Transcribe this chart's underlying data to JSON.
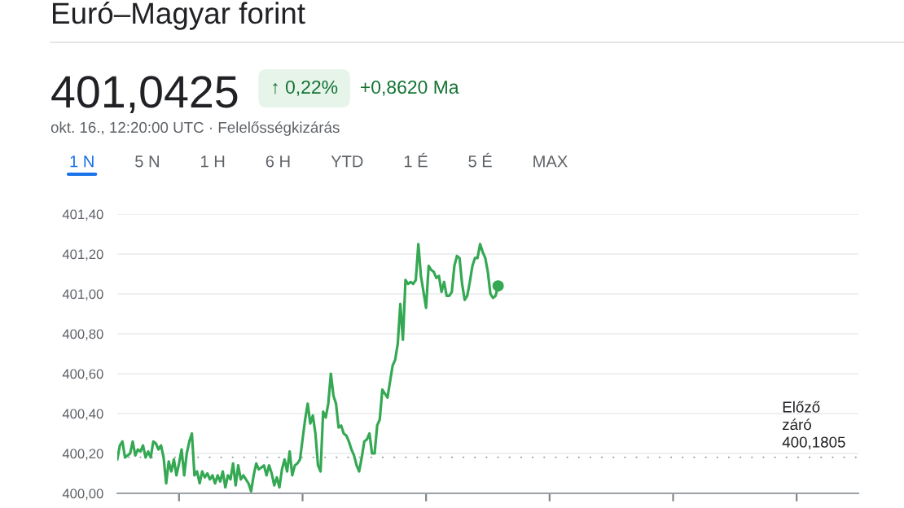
{
  "chart_data": {
    "type": "line",
    "title": "Euró–Magyar forint",
    "subtitle": "okt. 16., 12:20:00 UTC · Felelősségkizárás",
    "annotations": [
      "401,0425",
      "↑ 0,22%",
      "+0,8620 Ma",
      "1 N",
      "5 N",
      "1 H",
      "6 H",
      "YTD",
      "1 É",
      "5 É",
      "MAX"
    ],
    "categories": [
      null,
      null,
      null,
      null,
      null,
      null,
      null,
      null,
      null,
      null,
      null,
      null,
      null,
      null,
      null,
      null,
      null,
      null,
      null,
      null,
      null,
      null,
      null,
      null,
      null,
      null,
      null,
      null,
      null,
      null,
      null,
      null,
      null,
      null,
      null,
      null,
      null,
      null,
      null,
      null,
      null,
      null,
      null,
      null,
      null,
      null,
      null,
      null,
      null,
      null,
      null,
      null,
      null,
      null,
      null,
      null,
      null,
      null,
      null,
      null,
      null,
      null,
      null,
      null,
      null,
      null,
      null,
      null,
      null,
      null,
      null,
      null,
      null,
      null,
      null,
      null,
      null,
      null,
      null,
      null,
      null,
      null,
      null,
      null,
      null,
      null,
      null,
      null,
      null,
      null,
      null,
      null,
      null,
      null,
      null,
      null,
      null,
      null,
      null,
      null,
      null,
      null,
      null,
      null,
      null,
      null,
      null,
      null,
      null,
      null,
      null,
      null,
      null,
      null,
      null,
      null,
      null,
      null,
      null,
      null,
      null,
      null,
      null,
      null,
      null,
      null,
      null,
      null,
      null,
      null,
      null,
      null,
      null,
      null,
      null,
      null,
      null,
      null,
      null,
      null,
      null,
      null,
      null,
      null,
      null,
      null,
      null,
      null,
      null,
      null,
      null,
      null,
      null,
      null,
      null,
      null,
      null,
      null,
      null,
      null,
      null,
      null,
      null,
      null,
      null,
      null,
      null,
      null,
      null,
      null,
      null,
      null,
      null,
      null,
      null,
      null,
      null,
      null,
      null,
      null,
      null,
      null,
      null,
      null,
      null,
      null,
      null,
      null,
      null,
      null,
      null,
      null,
      null,
      null,
      null,
      null,
      null,
      null,
      null,
      null,
      null,
      null,
      null,
      null,
      null,
      null,
      null,
      null,
      null,
      null,
      null,
      null,
      null,
      null,
      null,
      null,
      null,
      null,
      null,
      null,
      null,
      null,
      null,
      null,
      null,
      null,
      null,
      null,
      null,
      null,
      null,
      null,
      null,
      null,
      null,
      null,
      null,
      null,
      null,
      null,
      null,
      null,
      null,
      null,
      null,
      null,
      null,
      null,
      null,
      null,
      null,
      null,
      null,
      null,
      null,
      null,
      null,
      null,
      null,
      null,
      null,
      null,
      null,
      null,
      null,
      null,
      null,
      null,
      null,
      null,
      null,
      null,
      null,
      null,
      null,
      null,
      null,
      null,
      null,
      null,
      null,
      null,
      null,
      null,
      null,
      null,
      null,
      null,
      null
    ],
    "series": [
      {
        "color": "#34a853",
        "values": [
          400.17,
          400.24,
          400.26,
          400.18,
          400.19,
          400.2,
          400.26,
          400.19,
          400.22,
          400.21,
          400.24,
          400.18,
          400.21,
          400.18,
          400.26,
          400.25,
          400.22,
          400.24,
          400.18,
          400.05,
          400.16,
          400.11,
          400.17,
          400.09,
          400.15,
          400.22,
          400.09,
          400.2,
          400.26,
          400.3,
          400.09,
          400.11,
          400.05,
          400.11,
          400.08,
          400.1,
          400.07,
          400.09,
          400.05,
          400.09,
          400.06,
          400.11,
          400.03,
          400.09,
          400.07,
          400.15,
          400.04,
          400.14,
          400.07,
          400.09,
          400.07,
          400.05,
          400.01,
          400.09,
          400.15,
          400.12,
          400.13,
          400.14,
          400.09,
          400.14,
          400.1,
          400.04,
          400.08,
          400.03,
          400.12,
          400.17,
          400.11,
          400.21,
          400.09,
          400.14,
          400.15,
          400.17,
          400.27,
          400.37,
          400.45,
          400.35,
          400.39,
          400.3,
          400.14,
          400.11,
          400.41,
          400.38,
          400.45,
          400.6,
          400.49,
          400.45,
          400.33,
          400.34,
          400.3,
          400.29,
          400.26,
          400.22,
          400.19,
          400.14,
          400.11,
          400.18,
          400.26,
          400.27,
          400.3,
          400.2,
          400.2,
          400.34,
          400.37,
          400.52,
          400.5,
          400.48,
          400.56,
          400.64,
          400.67,
          400.75,
          400.95,
          400.77,
          401.07,
          401.05,
          401.06,
          401.05,
          401.07,
          401.25,
          401.09,
          401.01,
          400.93,
          401.14,
          401.12,
          401.11,
          401.08,
          401.09,
          401.01,
          401.06,
          400.99,
          400.99,
          401.01,
          401.14,
          401.19,
          401.18,
          401.05,
          400.97,
          400.99,
          401.06,
          401.14,
          401.18,
          401.18,
          401.25,
          401.21,
          401.18,
          401.11,
          401.0,
          400.98,
          400.99,
          401.04,
          null,
          null,
          null,
          null,
          null,
          null,
          null,
          null,
          null,
          null,
          null,
          null,
          null,
          null,
          null,
          null,
          null,
          null,
          null,
          null,
          null,
          null,
          null,
          null,
          null,
          null,
          null,
          null,
          null,
          null,
          null,
          null,
          null,
          null,
          null,
          null,
          null,
          null,
          null,
          null,
          null,
          null,
          null,
          null,
          null,
          null,
          null,
          null,
          null,
          null,
          null,
          null,
          null,
          null,
          null,
          null,
          null,
          null,
          null,
          null,
          null,
          null,
          null,
          null,
          null,
          null,
          null,
          null,
          null,
          null,
          null,
          null,
          null,
          null,
          null,
          null,
          null,
          null,
          null,
          null,
          null,
          null,
          null,
          null,
          null,
          null,
          null,
          null,
          null,
          null,
          null,
          null,
          null,
          null,
          null,
          null,
          null,
          null,
          null,
          null,
          null,
          null,
          null,
          null,
          null,
          null,
          null,
          null,
          null,
          null,
          null,
          null,
          null,
          null,
          null,
          null,
          null,
          null,
          null,
          null,
          null,
          null,
          null,
          null,
          null,
          null,
          null,
          null,
          null,
          null,
          null,
          null,
          null,
          null,
          null,
          null,
          null,
          null,
          null,
          null
        ]
      },
      {
        "type": "scatter",
        "color": "#34a853",
        "values": [
          null,
          null,
          null,
          null,
          null,
          null,
          null,
          null,
          null,
          null,
          null,
          null,
          null,
          null,
          null,
          null,
          null,
          null,
          null,
          null,
          null,
          null,
          null,
          null,
          null,
          null,
          null,
          null,
          null,
          null,
          null,
          null,
          null,
          null,
          null,
          null,
          null,
          null,
          null,
          null,
          null,
          null,
          null,
          null,
          null,
          null,
          null,
          null,
          null,
          null,
          null,
          null,
          null,
          null,
          null,
          null,
          null,
          null,
          null,
          null,
          null,
          null,
          null,
          null,
          null,
          null,
          null,
          null,
          null,
          null,
          null,
          null,
          null,
          null,
          null,
          null,
          null,
          null,
          null,
          null,
          null,
          null,
          null,
          null,
          null,
          null,
          null,
          null,
          null,
          null,
          null,
          null,
          null,
          null,
          null,
          null,
          null,
          null,
          null,
          null,
          null,
          null,
          null,
          null,
          null,
          null,
          null,
          null,
          null,
          null,
          null,
          null,
          null,
          null,
          null,
          null,
          null,
          null,
          null,
          null,
          null,
          null,
          null,
          null,
          null,
          null,
          null,
          null,
          null,
          null,
          null,
          null,
          null,
          null,
          null,
          null,
          null,
          null,
          null,
          null,
          null,
          null,
          null,
          null,
          null,
          null,
          null,
          null,
          401.04,
          null,
          null,
          null,
          null,
          null,
          null,
          null,
          null,
          null,
          null,
          null,
          null,
          null,
          null,
          null,
          null,
          null,
          null,
          null,
          null,
          null,
          null,
          null,
          null,
          null,
          null,
          null,
          null,
          null,
          null,
          null,
          null,
          null,
          null,
          null,
          null,
          null,
          null,
          null,
          null,
          null,
          null,
          null,
          null,
          null,
          null,
          null,
          null,
          null,
          null,
          null,
          null,
          null,
          null,
          null,
          null,
          null,
          null,
          null,
          null,
          null,
          null,
          null,
          null,
          null,
          null,
          null,
          null,
          null,
          null,
          null,
          null,
          null,
          null,
          null,
          null,
          null,
          null,
          null,
          null,
          null,
          null,
          null,
          null,
          null,
          null,
          null,
          null,
          null,
          null,
          null,
          null,
          null,
          null,
          null,
          null,
          null,
          null,
          null,
          null,
          null,
          null,
          null,
          null,
          null,
          null,
          null,
          null,
          null,
          null,
          null,
          null,
          null,
          null,
          null,
          null,
          null,
          null,
          null,
          null,
          null,
          null,
          null,
          null,
          null,
          null,
          null,
          null,
          null,
          null,
          null,
          null,
          null,
          null,
          null,
          null,
          null,
          null,
          null,
          null
        ]
      }
    ],
    "ylim": [
      400,
      401.4
    ],
    "yticks": [
      {
        "value": 400,
        "label": "400,00"
      },
      {
        "value": 400.2,
        "label": "400,20"
      },
      {
        "value": 400.4,
        "label": "400,40"
      },
      {
        "value": 400.6,
        "label": "400,60"
      },
      {
        "value": 400.8,
        "label": "400,80"
      },
      {
        "value": 401,
        "label": "401,00"
      },
      {
        "value": 401.2,
        "label": "401,20"
      },
      {
        "value": 401.4,
        "label": "401,40"
      }
    ],
    "grid": "y",
    "tick_labels": "y",
    "ref_lines": [
      {
        "axis": "y",
        "value": 400.1805,
        "label": "Előző\nzáró\n400,1805",
        "color": "#9aa0a6",
        "line_style": "dotted"
      }
    ]
  }
}
